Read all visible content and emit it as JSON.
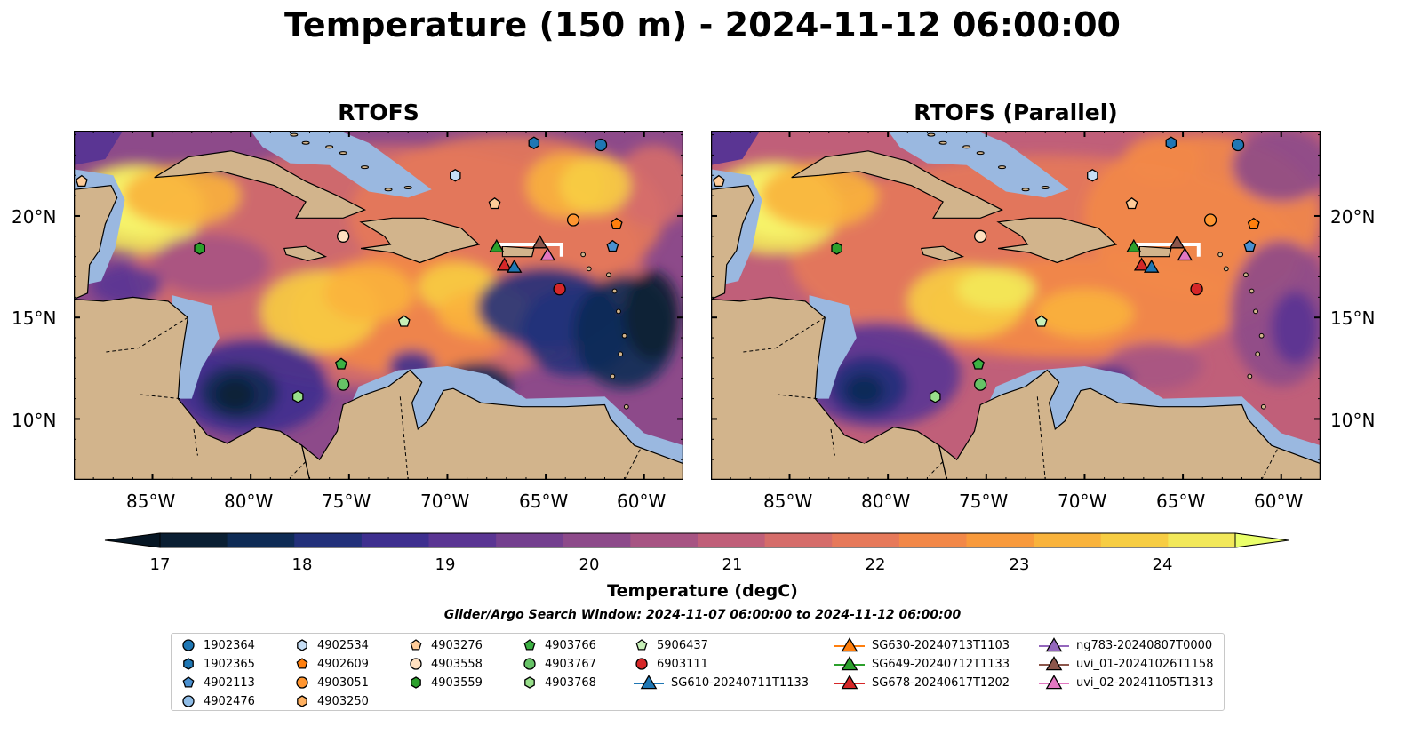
{
  "title": "Temperature (150 m) - 2024-11-12 06:00:00",
  "panels": [
    {
      "title": "RTOFS"
    },
    {
      "title": "RTOFS (Parallel)"
    }
  ],
  "map": {
    "lon_range": [
      -89,
      -58
    ],
    "lat_range": [
      7,
      24.2
    ],
    "lon_ticks": [
      "85°W",
      "80°W",
      "75°W",
      "70°W",
      "65°W",
      "60°W"
    ],
    "lat_ticks": [
      "20°N",
      "15°N",
      "10°N"
    ],
    "colors": {
      "land": "#d2b48c",
      "shelf": "#9ab8e0",
      "deep_cold": "#0b2236"
    }
  },
  "colorbar": {
    "label": "Temperature (degC)",
    "ticks": [
      "17",
      "18",
      "19",
      "20",
      "21",
      "22",
      "23",
      "24"
    ],
    "range": [
      16.5,
      24.5
    ],
    "colors": [
      "#0a1f33",
      "#0e2b55",
      "#22307a",
      "#3e2f8f",
      "#5a3593",
      "#74408f",
      "#8d4a8a",
      "#a75483",
      "#c05f79",
      "#d56d6a",
      "#e6795a",
      "#f28848",
      "#f89a3c",
      "#f9b33c",
      "#f7cd43",
      "#f2e85a"
    ]
  },
  "search_window": "Glider/Argo Search Window: 2024-11-07 06:00:00 to 2024-11-12 06:00:00",
  "legend": {
    "columns": [
      [
        {
          "label": "1902364",
          "marker": "circle",
          "color": "#1f77b4"
        },
        {
          "label": "1902365",
          "marker": "hexagon",
          "color": "#1f77b4"
        },
        {
          "label": "4902113",
          "marker": "pentagon",
          "color": "#4a90d0"
        },
        {
          "label": "4902476",
          "marker": "circle",
          "color": "#8fbce6"
        }
      ],
      [
        {
          "label": "4902534",
          "marker": "hexagon",
          "color": "#c6def5"
        },
        {
          "label": "4902609",
          "marker": "pentagon",
          "color": "#ff7f0e"
        },
        {
          "label": "4903051",
          "marker": "circle",
          "color": "#ff9530"
        },
        {
          "label": "4903250",
          "marker": "hexagon",
          "color": "#ffb060"
        }
      ],
      [
        {
          "label": "4903276",
          "marker": "pentagon",
          "color": "#ffcc99"
        },
        {
          "label": "4903558",
          "marker": "circle",
          "color": "#ffe0c0"
        },
        {
          "label": "4903559",
          "marker": "hexagon",
          "color": "#2ca02c"
        }
      ],
      [
        {
          "label": "4903766",
          "marker": "pentagon",
          "color": "#3cb043"
        },
        {
          "label": "4903767",
          "marker": "circle",
          "color": "#66c266"
        },
        {
          "label": "4903768",
          "marker": "hexagon",
          "color": "#98df8a"
        }
      ],
      [
        {
          "label": "5906437",
          "marker": "pentagon",
          "color": "#c7f0b8"
        },
        {
          "label": "6903111",
          "marker": "circle",
          "color": "#d62728"
        },
        {
          "label": "SG610-20240711T1133",
          "marker": "triangle-line",
          "color": "#1f77b4"
        }
      ],
      [
        {
          "label": "SG630-20240713T1103",
          "marker": "triangle-line",
          "color": "#ff7f0e"
        },
        {
          "label": "SG649-20240712T1133",
          "marker": "triangle-line",
          "color": "#2ca02c"
        },
        {
          "label": "SG678-20240617T1202",
          "marker": "triangle-line",
          "color": "#d62728"
        }
      ],
      [
        {
          "label": "ng783-20240807T0000",
          "marker": "triangle-line",
          "color": "#9467bd"
        },
        {
          "label": "uvi_01-20241026T1158",
          "marker": "triangle-line",
          "color": "#8c564b"
        },
        {
          "label": "uvi_02-20241105T1313",
          "marker": "triangle-line",
          "color": "#e377c2"
        }
      ]
    ]
  },
  "observations": [
    {
      "id": "1902364",
      "lon": -62.2,
      "lat": 23.5,
      "marker": "circle",
      "color": "#1f77b4"
    },
    {
      "id": "1902365",
      "lon": -65.6,
      "lat": 23.6,
      "marker": "hexagon",
      "color": "#1f77b4"
    },
    {
      "id": "4902113",
      "lon": -61.6,
      "lat": 18.5,
      "marker": "pentagon",
      "color": "#4a90d0"
    },
    {
      "id": "4902534",
      "lon": -69.6,
      "lat": 22.0,
      "marker": "hexagon",
      "color": "#c6def5"
    },
    {
      "id": "4902609",
      "lon": -61.4,
      "lat": 19.6,
      "marker": "pentagon",
      "color": "#ff7f0e"
    },
    {
      "id": "4903051",
      "lon": -63.6,
      "lat": 19.8,
      "marker": "circle",
      "color": "#ff9530"
    },
    {
      "id": "4903276",
      "lon": -67.6,
      "lat": 20.6,
      "marker": "pentagon",
      "color": "#ffcc99"
    },
    {
      "id": "4903276b",
      "lon": -88.6,
      "lat": 21.7,
      "marker": "pentagon",
      "color": "#ffcc99"
    },
    {
      "id": "4903558",
      "lon": -75.3,
      "lat": 19.0,
      "marker": "circle",
      "color": "#ffe0c0"
    },
    {
      "id": "4903559",
      "lon": -82.6,
      "lat": 18.4,
      "marker": "hexagon",
      "color": "#2ca02c"
    },
    {
      "id": "4903766",
      "lon": -75.4,
      "lat": 12.7,
      "marker": "pentagon",
      "color": "#3cb043"
    },
    {
      "id": "4903767",
      "lon": -75.3,
      "lat": 11.7,
      "marker": "circle",
      "color": "#66c266"
    },
    {
      "id": "4903768",
      "lon": -77.6,
      "lat": 11.1,
      "marker": "hexagon",
      "color": "#98df8a"
    },
    {
      "id": "5906437",
      "lon": -72.2,
      "lat": 14.8,
      "marker": "pentagon",
      "color": "#c7f0b8"
    },
    {
      "id": "6903111",
      "lon": -64.3,
      "lat": 16.4,
      "marker": "circle",
      "color": "#d62728"
    },
    {
      "id": "SG649",
      "lon": -67.5,
      "lat": 18.5,
      "marker": "triangle",
      "color": "#2ca02c"
    },
    {
      "id": "SG678",
      "lon": -67.1,
      "lat": 17.6,
      "marker": "triangle",
      "color": "#d62728"
    },
    {
      "id": "SG610",
      "lon": -66.6,
      "lat": 17.5,
      "marker": "triangle",
      "color": "#1f77b4"
    },
    {
      "id": "uvi_01",
      "lon": -65.3,
      "lat": 18.7,
      "marker": "triangle",
      "color": "#8c564b"
    },
    {
      "id": "uvi_02",
      "lon": -64.9,
      "lat": 18.1,
      "marker": "triangle",
      "color": "#e377c2"
    }
  ]
}
